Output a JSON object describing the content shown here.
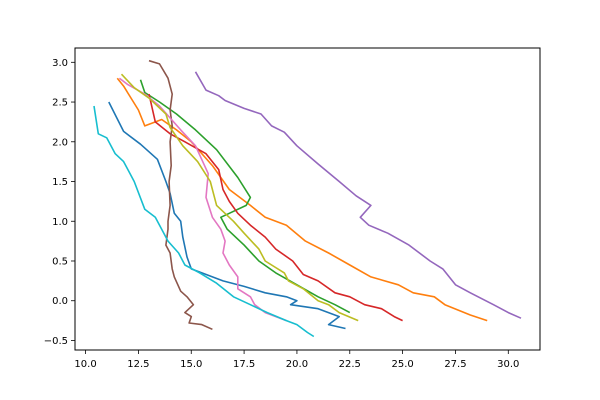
{
  "chart_data": {
    "type": "line",
    "title": "",
    "xlabel": "",
    "ylabel": "",
    "xlim": [
      9.5,
      31.5
    ],
    "ylim": [
      -0.62,
      3.18
    ],
    "x_ticks": [
      10.0,
      12.5,
      15.0,
      17.5,
      20.0,
      22.5,
      25.0,
      27.5,
      30.0
    ],
    "x_tick_labels": [
      "10.0",
      "12.5",
      "15.0",
      "17.5",
      "20.0",
      "22.5",
      "25.0",
      "27.5",
      "30.0"
    ],
    "y_ticks": [
      -0.5,
      0.0,
      0.5,
      1.0,
      1.5,
      2.0,
      2.5,
      3.0
    ],
    "y_tick_labels": [
      "−0.5",
      "0.0",
      "0.5",
      "1.0",
      "1.5",
      "2.0",
      "2.5",
      "3.0"
    ],
    "grid": false,
    "legend": "none",
    "series": [
      {
        "color": "#1f77b4",
        "points": [
          [
            11.1,
            2.5
          ],
          [
            11.8,
            2.13
          ],
          [
            12.6,
            1.97
          ],
          [
            13.4,
            1.78
          ],
          [
            13.8,
            1.5
          ],
          [
            14.0,
            1.35
          ],
          [
            14.2,
            1.1
          ],
          [
            14.5,
            1.0
          ],
          [
            14.6,
            0.8
          ],
          [
            14.8,
            0.55
          ],
          [
            15.0,
            0.4
          ],
          [
            16.5,
            0.25
          ],
          [
            17.5,
            0.18
          ],
          [
            18.5,
            0.1
          ],
          [
            19.5,
            0.05
          ],
          [
            20.0,
            0.0
          ],
          [
            19.7,
            -0.05
          ],
          [
            21.0,
            -0.1
          ],
          [
            22.0,
            -0.2
          ],
          [
            21.5,
            -0.3
          ],
          [
            22.3,
            -0.35
          ]
        ]
      },
      {
        "color": "#ff7f0e",
        "points": [
          [
            11.5,
            2.8
          ],
          [
            11.8,
            2.7
          ],
          [
            12.5,
            2.4
          ],
          [
            12.8,
            2.2
          ],
          [
            13.6,
            2.28
          ],
          [
            14.3,
            2.15
          ],
          [
            15.0,
            2.0
          ],
          [
            16.0,
            1.7
          ],
          [
            16.8,
            1.4
          ],
          [
            17.8,
            1.2
          ],
          [
            18.5,
            1.05
          ],
          [
            19.5,
            0.95
          ],
          [
            20.4,
            0.75
          ],
          [
            21.5,
            0.6
          ],
          [
            22.5,
            0.45
          ],
          [
            23.5,
            0.3
          ],
          [
            24.8,
            0.2
          ],
          [
            25.5,
            0.1
          ],
          [
            26.5,
            0.05
          ],
          [
            27.0,
            -0.05
          ],
          [
            28.2,
            -0.18
          ],
          [
            29.0,
            -0.25
          ]
        ]
      },
      {
        "color": "#2ca02c",
        "points": [
          [
            12.6,
            2.78
          ],
          [
            12.8,
            2.62
          ],
          [
            13.5,
            2.5
          ],
          [
            14.3,
            2.35
          ],
          [
            15.2,
            2.15
          ],
          [
            16.2,
            1.9
          ],
          [
            17.2,
            1.55
          ],
          [
            17.8,
            1.3
          ],
          [
            17.6,
            1.2
          ],
          [
            16.8,
            1.1
          ],
          [
            16.4,
            1.05
          ],
          [
            16.7,
            0.9
          ],
          [
            17.5,
            0.7
          ],
          [
            18.2,
            0.5
          ],
          [
            19.0,
            0.35
          ],
          [
            20.0,
            0.2
          ],
          [
            21.0,
            0.05
          ],
          [
            21.8,
            -0.05
          ],
          [
            22.5,
            -0.15
          ]
        ]
      },
      {
        "color": "#d62728",
        "points": [
          [
            13.0,
            2.6
          ],
          [
            13.3,
            2.25
          ],
          [
            14.0,
            2.1
          ],
          [
            14.7,
            2.0
          ],
          [
            15.7,
            1.85
          ],
          [
            16.3,
            1.65
          ],
          [
            16.5,
            1.4
          ],
          [
            16.8,
            1.25
          ],
          [
            17.2,
            1.1
          ],
          [
            17.8,
            0.95
          ],
          [
            18.5,
            0.8
          ],
          [
            19.0,
            0.65
          ],
          [
            19.8,
            0.5
          ],
          [
            20.3,
            0.33
          ],
          [
            21.0,
            0.25
          ],
          [
            21.8,
            0.1
          ],
          [
            22.5,
            0.05
          ],
          [
            23.2,
            -0.05
          ],
          [
            24.0,
            -0.1
          ],
          [
            24.6,
            -0.2
          ],
          [
            25.0,
            -0.25
          ]
        ]
      },
      {
        "color": "#9467bd",
        "points": [
          [
            15.2,
            2.88
          ],
          [
            15.7,
            2.65
          ],
          [
            16.3,
            2.58
          ],
          [
            16.6,
            2.52
          ],
          [
            17.5,
            2.42
          ],
          [
            18.3,
            2.35
          ],
          [
            18.8,
            2.2
          ],
          [
            19.4,
            2.12
          ],
          [
            20.0,
            1.95
          ],
          [
            21.0,
            1.72
          ],
          [
            22.0,
            1.5
          ],
          [
            22.8,
            1.32
          ],
          [
            23.5,
            1.2
          ],
          [
            23.0,
            1.05
          ],
          [
            23.4,
            0.95
          ],
          [
            24.3,
            0.85
          ],
          [
            25.3,
            0.7
          ],
          [
            26.3,
            0.5
          ],
          [
            26.9,
            0.4
          ],
          [
            27.5,
            0.2
          ],
          [
            28.2,
            0.1
          ],
          [
            29.3,
            -0.05
          ],
          [
            30.0,
            -0.15
          ],
          [
            30.6,
            -0.22
          ]
        ]
      },
      {
        "color": "#8c564b",
        "points": [
          [
            13.0,
            3.02
          ],
          [
            13.5,
            2.98
          ],
          [
            13.9,
            2.8
          ],
          [
            14.1,
            2.6
          ],
          [
            14.0,
            2.4
          ],
          [
            14.1,
            2.2
          ],
          [
            14.0,
            2.0
          ],
          [
            14.05,
            1.7
          ],
          [
            13.95,
            1.5
          ],
          [
            14.0,
            1.2
          ],
          [
            13.9,
            1.0
          ],
          [
            13.9,
            0.9
          ],
          [
            13.8,
            0.7
          ],
          [
            14.0,
            0.6
          ],
          [
            14.1,
            0.4
          ],
          [
            14.2,
            0.3
          ],
          [
            14.5,
            0.12
          ],
          [
            14.8,
            0.05
          ],
          [
            15.1,
            -0.05
          ],
          [
            14.7,
            -0.15
          ],
          [
            15.0,
            -0.2
          ],
          [
            14.9,
            -0.28
          ],
          [
            15.5,
            -0.3
          ],
          [
            16.0,
            -0.36
          ]
        ]
      },
      {
        "color": "#e377c2",
        "points": [
          [
            11.6,
            2.8
          ],
          [
            12.0,
            2.72
          ],
          [
            12.8,
            2.6
          ],
          [
            13.5,
            2.45
          ],
          [
            14.5,
            2.15
          ],
          [
            15.2,
            1.95
          ],
          [
            15.8,
            1.6
          ],
          [
            15.7,
            1.3
          ],
          [
            16.0,
            1.05
          ],
          [
            16.4,
            0.9
          ],
          [
            16.6,
            0.75
          ],
          [
            16.5,
            0.6
          ],
          [
            16.8,
            0.45
          ],
          [
            17.2,
            0.3
          ],
          [
            17.2,
            0.15
          ],
          [
            17.8,
            0.05
          ],
          [
            18.0,
            -0.05
          ],
          [
            18.5,
            -0.15
          ],
          [
            19.5,
            -0.25
          ]
        ]
      },
      {
        "color": "#7f7f7f",
        "points": []
      },
      {
        "color": "#bcbd22",
        "points": [
          [
            11.7,
            2.85
          ],
          [
            12.3,
            2.68
          ],
          [
            13.0,
            2.55
          ],
          [
            13.8,
            2.35
          ],
          [
            14.0,
            2.18
          ],
          [
            14.6,
            1.95
          ],
          [
            15.3,
            1.75
          ],
          [
            15.9,
            1.5
          ],
          [
            16.2,
            1.2
          ],
          [
            17.0,
            1.0
          ],
          [
            17.5,
            0.85
          ],
          [
            18.2,
            0.65
          ],
          [
            18.5,
            0.5
          ],
          [
            19.4,
            0.35
          ],
          [
            19.6,
            0.25
          ],
          [
            20.3,
            0.15
          ],
          [
            21.0,
            0.0
          ],
          [
            21.5,
            -0.05
          ],
          [
            22.0,
            -0.15
          ],
          [
            22.9,
            -0.25
          ]
        ]
      },
      {
        "color": "#17becf",
        "points": [
          [
            10.4,
            2.45
          ],
          [
            10.6,
            2.1
          ],
          [
            11.0,
            2.05
          ],
          [
            11.4,
            1.85
          ],
          [
            11.8,
            1.75
          ],
          [
            12.3,
            1.5
          ],
          [
            12.8,
            1.15
          ],
          [
            13.3,
            1.05
          ],
          [
            13.9,
            0.75
          ],
          [
            14.4,
            0.6
          ],
          [
            14.7,
            0.45
          ],
          [
            15.4,
            0.35
          ],
          [
            16.2,
            0.22
          ],
          [
            17.0,
            0.05
          ],
          [
            17.8,
            -0.05
          ],
          [
            18.6,
            -0.15
          ],
          [
            19.5,
            -0.25
          ],
          [
            20.0,
            -0.3
          ],
          [
            20.5,
            -0.4
          ],
          [
            20.8,
            -0.45
          ]
        ]
      }
    ]
  }
}
